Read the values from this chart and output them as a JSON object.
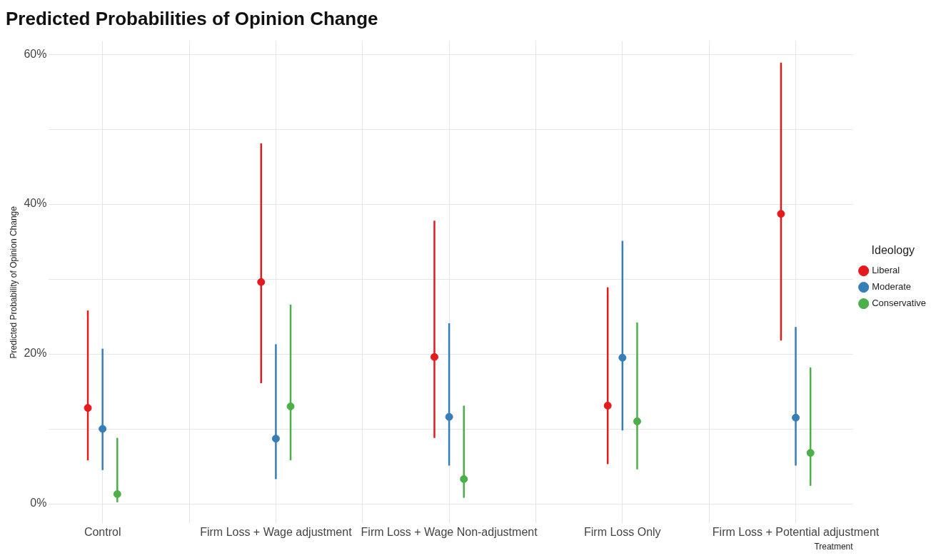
{
  "chart_data": {
    "type": "scatter",
    "title": "Predicted Probabilities of Opinion Change",
    "xlabel": "Treatment",
    "ylabel": "Predicted Probability of Opinion Change",
    "legend_title": "Ideology",
    "categories": [
      "Control",
      "Firm Loss + Wage adjustment",
      "Firm Loss + Wage Non-adjustment",
      "Firm Loss Only",
      "Firm Loss + Potential adjustment"
    ],
    "series": [
      {
        "name": "Liberal",
        "color": "#e41a1c",
        "values": [
          12.8,
          29.6,
          19.6,
          13.1,
          38.7
        ],
        "errors": [
          [
            5.8,
            25.8
          ],
          [
            16.1,
            48.1
          ],
          [
            8.8,
            37.8
          ],
          [
            5.3,
            28.9
          ],
          [
            21.8,
            58.9
          ]
        ]
      },
      {
        "name": "Moderate",
        "color": "#377eb8",
        "values": [
          10.0,
          8.7,
          11.6,
          19.5,
          11.5
        ],
        "errors": [
          [
            4.5,
            20.7
          ],
          [
            3.3,
            21.3
          ],
          [
            5.1,
            24.1
          ],
          [
            9.8,
            35.1
          ],
          [
            5.1,
            23.6
          ]
        ]
      },
      {
        "name": "Conservative",
        "color": "#4daf4a",
        "values": [
          1.3,
          13.0,
          3.3,
          11.0,
          6.8
        ],
        "errors": [
          [
            0.2,
            8.8
          ],
          [
            5.8,
            26.6
          ],
          [
            0.8,
            13.1
          ],
          [
            4.6,
            24.2
          ],
          [
            2.4,
            18.2
          ]
        ]
      }
    ],
    "ylim": [
      -2.7,
      61.8
    ],
    "yticks": [
      {
        "value": 0,
        "label": "0%"
      },
      {
        "value": 10,
        "label": null
      },
      {
        "value": 20,
        "label": "20%"
      },
      {
        "value": 30,
        "label": null
      },
      {
        "value": 40,
        "label": "40%"
      },
      {
        "value": 50,
        "label": null
      },
      {
        "value": 60,
        "label": "60%"
      }
    ],
    "grid": true,
    "legend": "right",
    "marker": "circle"
  }
}
